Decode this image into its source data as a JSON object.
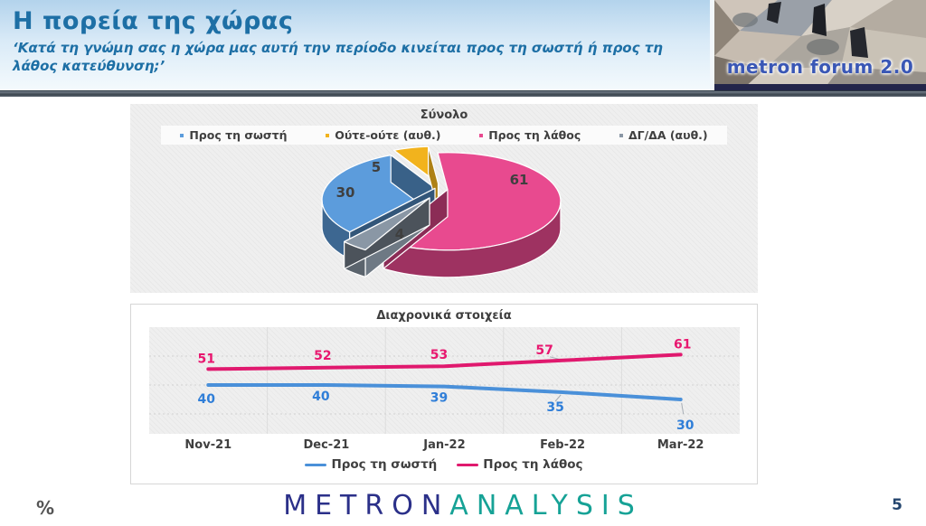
{
  "header": {
    "title": "Η πορεία της χώρας",
    "subtitle": "‘Κατά τη γνώμη σας η χώρα μας αυτή την περίοδο κινείται προς τη σωστή ή προς τη λάθος κατεύθυνση;’",
    "logo_text": "metron forum 2.0"
  },
  "chart_data": [
    {
      "type": "pie",
      "style": "3d-exploded",
      "title": "Σύνολο",
      "labels": [
        "Προς τη σωστή",
        "Ούτε-ούτε (αυθ.)",
        "Προς τη λάθος",
        "ΔΓ/ΔΑ (αυθ.)"
      ],
      "values": [
        30,
        5,
        61,
        4
      ],
      "colors": [
        "#5c9cdc",
        "#f2b31d",
        "#e84a8f",
        "#8a97a5"
      ],
      "legend_position": "top"
    },
    {
      "type": "line",
      "title": "Διαχρονικά στοιχεία",
      "categories": [
        "Nov-21",
        "Dec-21",
        "Jan-22",
        "Feb-22",
        "Mar-22"
      ],
      "series": [
        {
          "name": "Προς τη σωστή",
          "color": "#4a90d9",
          "label_color": "#2f7ed8",
          "values": [
            40,
            40,
            39,
            35,
            30
          ]
        },
        {
          "name": "Προς τη λάθος",
          "color": "#e0196e",
          "label_color": "#e8176f",
          "values": [
            51,
            52,
            53,
            57,
            61
          ]
        }
      ],
      "ylim": [
        0,
        80
      ],
      "grid": true,
      "legend_position": "bottom"
    }
  ],
  "footer": {
    "percent_label": "%",
    "logo_metron": "METRON",
    "logo_analysis": "ANALYSIS",
    "page_number": "5"
  }
}
